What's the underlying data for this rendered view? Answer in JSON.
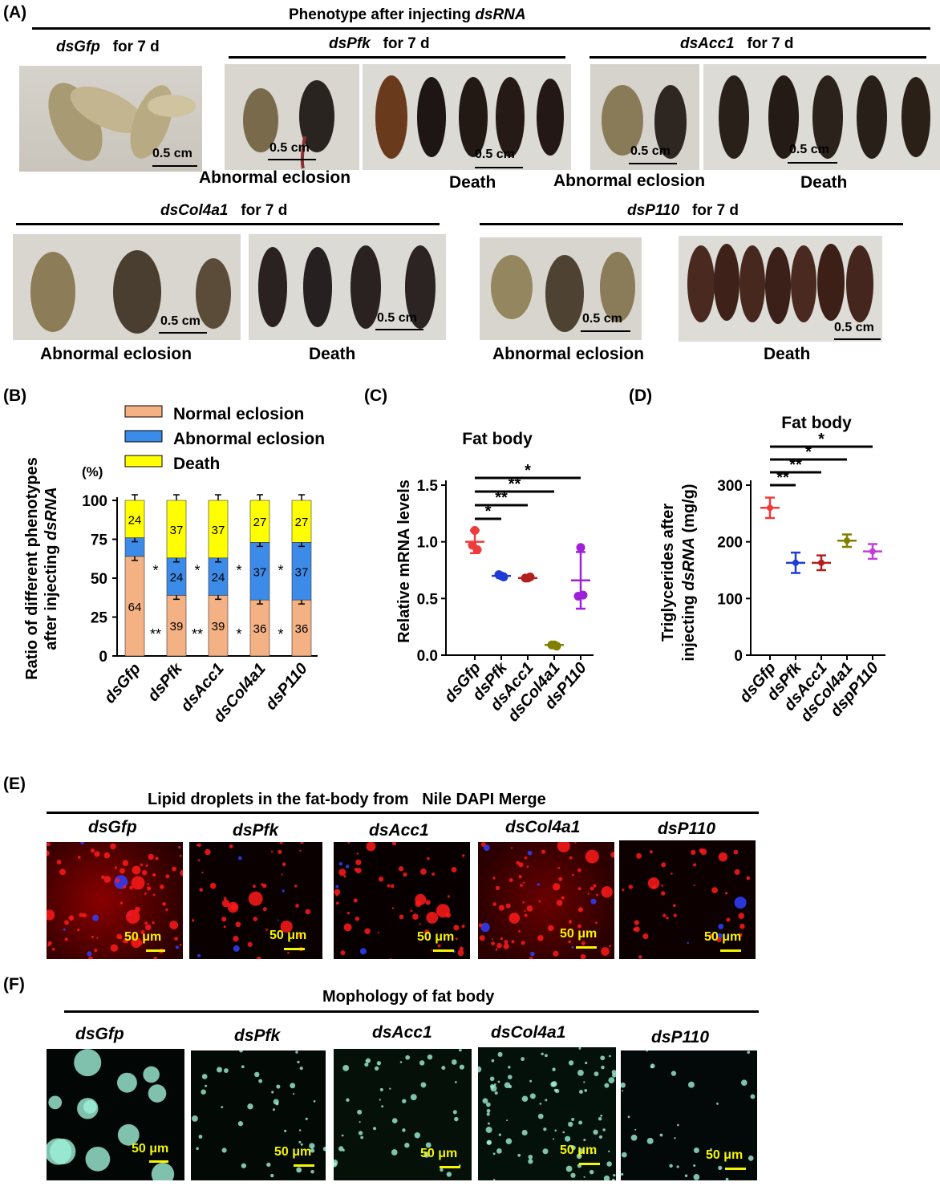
{
  "panelA": {
    "label": "(A)",
    "title_prefix": "Phenotype after injecting ",
    "title_gene": "dsRNA",
    "groups": [
      {
        "gene": "dsGfp",
        "suffix": "for 7 d"
      },
      {
        "gene": "dsPfk",
        "suffix": "for 7 d"
      },
      {
        "gene": "dsAcc1",
        "suffix": "for 7 d"
      },
      {
        "gene": "dsCol4a1",
        "suffix": "for 7 d"
      },
      {
        "gene": "dsP110",
        "suffix": "for 7 d"
      }
    ],
    "scale": "0.5 cm",
    "cap_abnormal": "Abnormal eclosion",
    "cap_death": "Death"
  },
  "panelB": {
    "label": "(B)",
    "legend": [
      "Normal eclosion",
      "Abnormal eclosion",
      "Death"
    ],
    "unit": "(%)",
    "sig_single": "*",
    "sig_double": "**",
    "chart_data": {
      "type": "bar",
      "stacked": true,
      "categories": [
        "dsGfp",
        "dsPfk",
        "dsAcc1",
        "dsCol4a1",
        "dsP110"
      ],
      "series": [
        {
          "name": "Normal eclosion",
          "color": "#f4b183",
          "values": [
            64,
            39,
            39,
            36,
            36
          ]
        },
        {
          "name": "Abnormal eclosion",
          "color": "#3d8be8",
          "values": [
            12,
            24,
            24,
            37,
            37
          ]
        },
        {
          "name": "Death",
          "color": "#ffff00",
          "values": [
            24,
            37,
            37,
            27,
            27
          ]
        }
      ],
      "bar_labels": {
        "normal": [
          "64",
          "39",
          "39",
          "36",
          "36"
        ],
        "abnormal": [
          "",
          "24",
          "24",
          "37",
          "37"
        ],
        "death": [
          "24",
          "37",
          "37",
          "27",
          "27"
        ]
      },
      "yticks": [
        "0",
        "25",
        "50",
        "75",
        "100"
      ],
      "ylim": [
        0,
        100
      ],
      "ylabel_line1": "Ratio of different phenotypes",
      "ylabel_line2_prefix": "after injecting ",
      "ylabel_line2_gene": "dsRNA"
    }
  },
  "panelC": {
    "label": "(C)",
    "chart_data": {
      "type": "scatter",
      "title": "Fat body",
      "ylabel": "Relative mRNA levels",
      "categories": [
        "dsGfp",
        "dsPfk",
        "dsAcc1",
        "dsCol4a1",
        "dsP110"
      ],
      "colors": [
        "#ee3b3b",
        "#1f3bd6",
        "#b21f1f",
        "#808000",
        "#a020d8"
      ],
      "mean": [
        1.0,
        0.7,
        0.68,
        0.09,
        0.66
      ],
      "err": [
        0.1,
        0.02,
        0.01,
        0.01,
        0.25
      ],
      "points": [
        [
          1.1,
          0.97,
          0.93
        ],
        [
          0.7,
          0.71,
          0.69
        ],
        [
          0.68,
          0.68,
          0.69
        ],
        [
          0.09,
          0.09,
          0.08
        ],
        [
          0.95,
          0.52,
          0.53
        ]
      ],
      "yticks": [
        "0.0",
        "0.5",
        "1.0",
        "1.5"
      ],
      "ylim": [
        0,
        1.5
      ],
      "significance": [
        {
          "to": "dsPfk",
          "label": "*"
        },
        {
          "to": "dsAcc1",
          "label": "**"
        },
        {
          "to": "dsCol4a1",
          "label": "**"
        },
        {
          "to": "dsP110",
          "label": "*"
        }
      ]
    }
  },
  "panelD": {
    "label": "(D)",
    "chart_data": {
      "type": "scatter",
      "title": "Fat body",
      "ylabel_line1": "Triglycerides after",
      "ylabel_line2_prefix": "injecting ",
      "ylabel_line2_gene": "dsRNA",
      "ylabel_line2_suffix": " (mg/g)",
      "categories": [
        "dsGfp",
        "dsPfk",
        "dsAcc1",
        "dsCol4a1",
        "dspP110"
      ],
      "colors": [
        "#ee3b3b",
        "#1f3bd6",
        "#b21f1f",
        "#808000",
        "#c040d8"
      ],
      "mean": [
        260,
        163,
        163,
        202,
        183
      ],
      "err": [
        18,
        18,
        13,
        11,
        13
      ],
      "yticks": [
        "0",
        "100",
        "200",
        "300"
      ],
      "ylim": [
        0,
        300
      ],
      "significance": [
        {
          "to": "dsPfk",
          "label": "**"
        },
        {
          "to": "dsAcc1",
          "label": "**"
        },
        {
          "to": "dsCol4a1",
          "label": "*"
        },
        {
          "to": "dspP110",
          "label": "*"
        }
      ]
    }
  },
  "panelE": {
    "label": "(E)",
    "title": "Lipid droplets in the fat-body from   Nile DAPI Merge",
    "genes": [
      "dsGfp",
      "dsPfk",
      "dsAcc1",
      "dsCol4a1",
      "dsP110"
    ],
    "scale": "50 μm"
  },
  "panelF": {
    "label": "(F)",
    "title": "Mophology of fat body",
    "genes": [
      "dsGfp",
      "dsPfk",
      "dsAcc1",
      "dsCol4a1",
      "dsP110"
    ],
    "scale": "50 μm"
  }
}
